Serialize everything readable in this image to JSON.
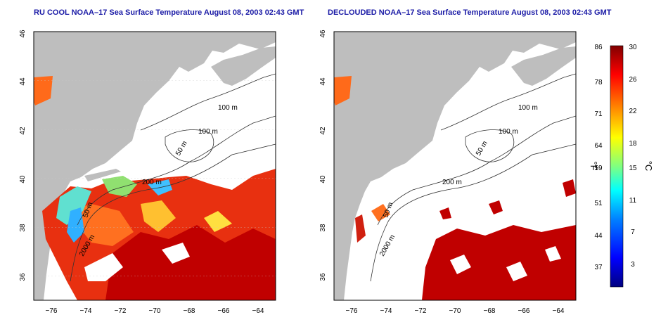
{
  "titles": {
    "left": "RU COOL NOAA–17 Sea Surface Temperature August 08, 2003 02:43 GMT",
    "right": "DECLOUDED NOAA–17 Sea Surface Temperature August 08, 2003 02:43 GMT"
  },
  "map": {
    "lon_ticks": [
      "−76",
      "−74",
      "−72",
      "−70",
      "−68",
      "−66",
      "−64"
    ],
    "lat_ticks": [
      "46",
      "44",
      "42",
      "40",
      "38",
      "36"
    ],
    "lon_range": [
      -77,
      -63
    ],
    "lat_range": [
      35,
      46
    ],
    "contour_labels": {
      "c100a": "100 m",
      "c100b": "100 m",
      "c50": "50 m",
      "c200": "200 m",
      "c2000": "2000 m",
      "c50b": "50 m"
    },
    "land_color": "#bebebe",
    "ocean_color": "#ffffff"
  },
  "colorbar": {
    "fahrenheit_ticks": [
      "86",
      "78",
      "71",
      "64",
      "59",
      "51",
      "44",
      "37"
    ],
    "celsius_ticks": [
      "30",
      "26",
      "22",
      "18",
      "15",
      "11",
      "7",
      "3"
    ],
    "fahrenheit_label": "°F",
    "celsius_label": "°C",
    "colors": [
      "#000080",
      "#0000ff",
      "#0080ff",
      "#00ffff",
      "#80ff80",
      "#ffff00",
      "#ff8000",
      "#ff0000",
      "#800000"
    ]
  }
}
